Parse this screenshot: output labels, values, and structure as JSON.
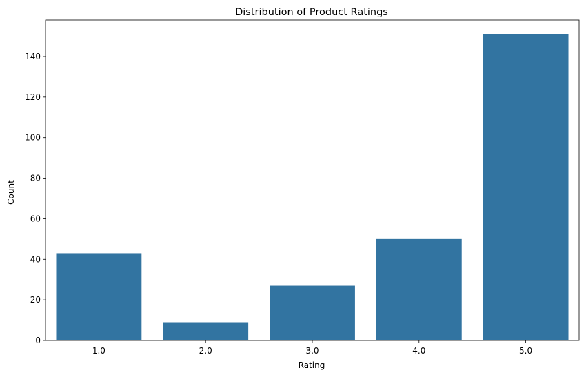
{
  "chart_data": {
    "type": "bar",
    "title": "Distribution of Product Ratings",
    "xlabel": "Rating",
    "ylabel": "Count",
    "categories": [
      "1.0",
      "2.0",
      "3.0",
      "4.0",
      "5.0"
    ],
    "values": [
      43,
      9,
      27,
      50,
      151
    ],
    "ylim": [
      0,
      158
    ],
    "yticks": [
      0,
      20,
      40,
      60,
      80,
      100,
      120,
      140
    ],
    "ytick_labels": [
      "0",
      "20",
      "40",
      "60",
      "80",
      "100",
      "120",
      "140"
    ],
    "bar_color": "#3274a1",
    "grid": false,
    "legend": "none"
  }
}
